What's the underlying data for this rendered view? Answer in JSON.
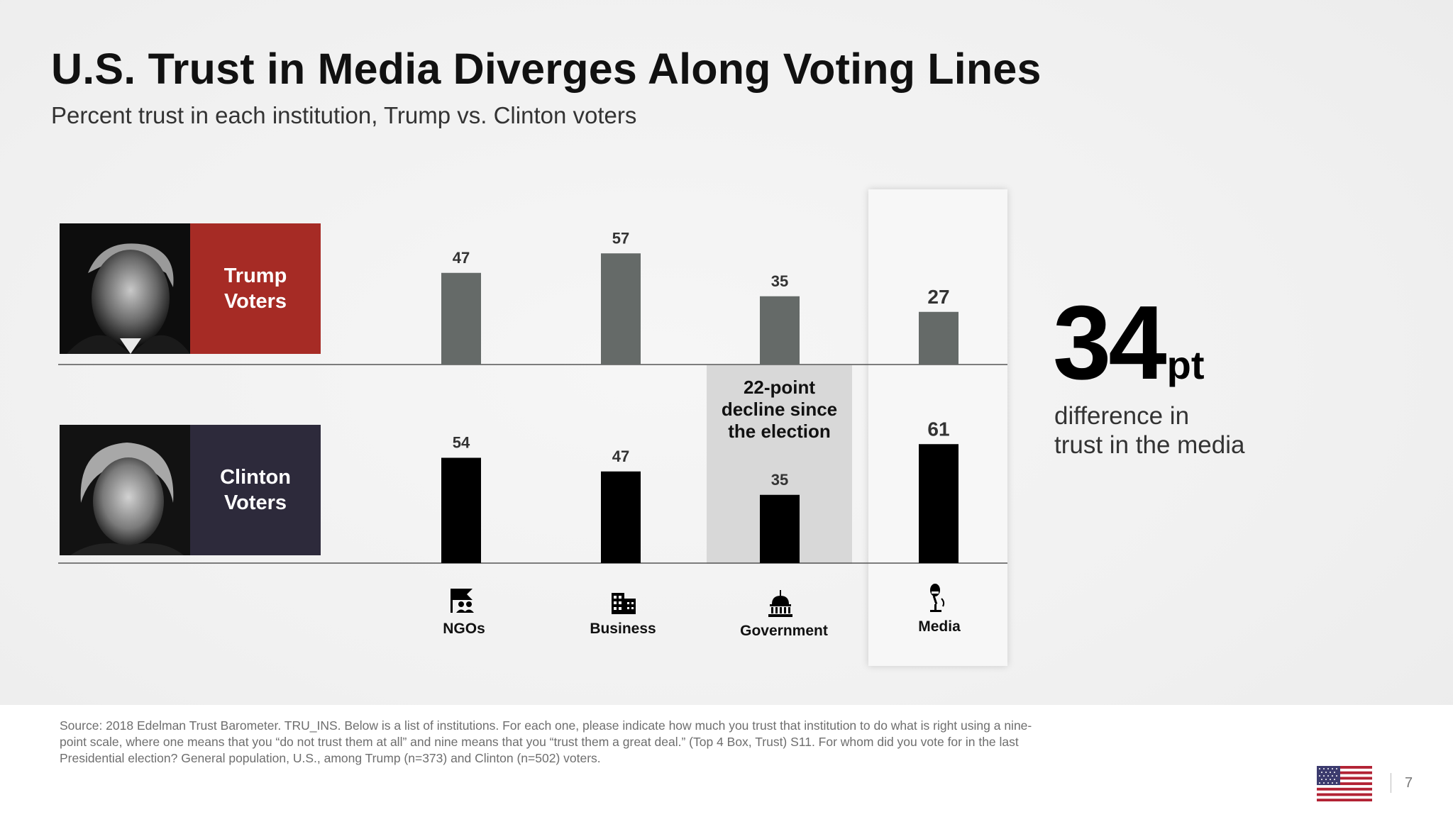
{
  "title": "U.S. Trust in Media Diverges Along Voting Lines",
  "subtitle": "Percent trust in each institution, Trump vs. Clinton voters",
  "groups": {
    "trump": {
      "line1": "Trump",
      "line2": "Voters",
      "color": "#a62b25"
    },
    "clinton": {
      "line1": "Clinton",
      "line2": "Voters",
      "color": "#2d2a3b"
    }
  },
  "callout": {
    "line1": "22-point",
    "line2": "decline since",
    "line3": "the election"
  },
  "highlight": {
    "number": "34",
    "unit": "pt",
    "caption_line1": "difference in",
    "caption_line2": "trust in the media"
  },
  "chart_data": {
    "type": "bar",
    "title": "U.S. Trust in Media Diverges Along Voting Lines",
    "subtitle": "Percent trust in each institution, Trump vs. Clinton voters",
    "categories": [
      "NGOs",
      "Business",
      "Government",
      "Media"
    ],
    "series": [
      {
        "name": "Trump Voters",
        "values": [
          47,
          57,
          35,
          27
        ],
        "color": "#656a68"
      },
      {
        "name": "Clinton Voters",
        "values": [
          54,
          47,
          35,
          61
        ],
        "color": "#000000"
      }
    ],
    "icons": [
      "ngo-icon",
      "business-icon",
      "government-icon",
      "media-icon"
    ],
    "annotations": [
      "22-point decline since the election",
      "34pt difference in trust in the media"
    ],
    "ylim": [
      0,
      100
    ]
  },
  "footer": {
    "source": "Source: 2018 Edelman Trust Barometer. TRU_INS. Below is a list of institutions. For each one, please indicate how much you trust that institution to do what is right using a nine-point scale, where one means that you “do not trust them at all” and nine means that you “trust them a great deal.” (Top 4 Box, Trust) S11. For whom did you vote for in the last Presidential election? General population, U.S., among Trump (n=373) and Clinton (n=502) voters.",
    "page_number": "7",
    "flag_icon": "us-flag-icon"
  }
}
